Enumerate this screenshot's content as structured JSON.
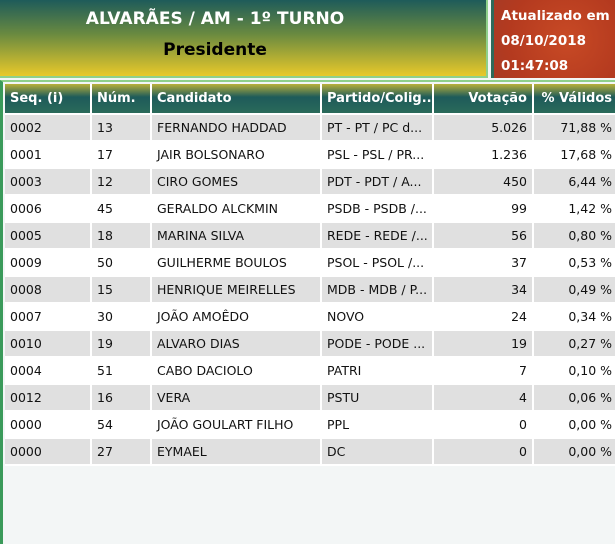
{
  "header": {
    "title": "ALVARÃES / AM - 1º TURNO",
    "subtitle": "Presidente"
  },
  "updated": {
    "label": "Atualizado em",
    "date": "08/10/2018",
    "time": "01:47:08"
  },
  "table": {
    "columns": [
      "Seq.   (i)",
      "Núm.",
      "Candidato",
      "Partido/Colig...",
      "Votação",
      "% Válidos"
    ],
    "rows": [
      [
        "0002",
        "13",
        "FERNANDO HADDAD",
        "PT - PT / PC d...",
        "5.026",
        "71,88 %"
      ],
      [
        "0001",
        "17",
        "JAIR BOLSONARO",
        "PSL - PSL / PR...",
        "1.236",
        "17,68 %"
      ],
      [
        "0003",
        "12",
        "CIRO GOMES",
        "PDT - PDT / A...",
        "450",
        "6,44 %"
      ],
      [
        "0006",
        "45",
        "GERALDO ALCKMIN",
        "PSDB - PSDB /...",
        "99",
        "1,42 %"
      ],
      [
        "0005",
        "18",
        "MARINA SILVA",
        "REDE - REDE /...",
        "56",
        "0,80 %"
      ],
      [
        "0009",
        "50",
        "GUILHERME BOULOS",
        "PSOL - PSOL /...",
        "37",
        "0,53 %"
      ],
      [
        "0008",
        "15",
        "HENRIQUE MEIRELLES",
        "MDB - MDB / P...",
        "34",
        "0,49 %"
      ],
      [
        "0007",
        "30",
        "JOÃO AMOÊDO",
        "NOVO",
        "24",
        "0,34 %"
      ],
      [
        "0010",
        "19",
        "ALVARO DIAS",
        "PODE - PODE ...",
        "19",
        "0,27 %"
      ],
      [
        "0004",
        "51",
        "CABO DACIOLO",
        "PATRI",
        "7",
        "0,10 %"
      ],
      [
        "0012",
        "16",
        "VERA",
        "PSTU",
        "4",
        "0,06 %"
      ],
      [
        "0000",
        "54",
        "JOÃO GOULART FILHO",
        "PPL",
        "0",
        "0,00 %"
      ],
      [
        "0000",
        "27",
        "EYMAEL",
        "DC",
        "0",
        "0,00 %"
      ]
    ]
  }
}
